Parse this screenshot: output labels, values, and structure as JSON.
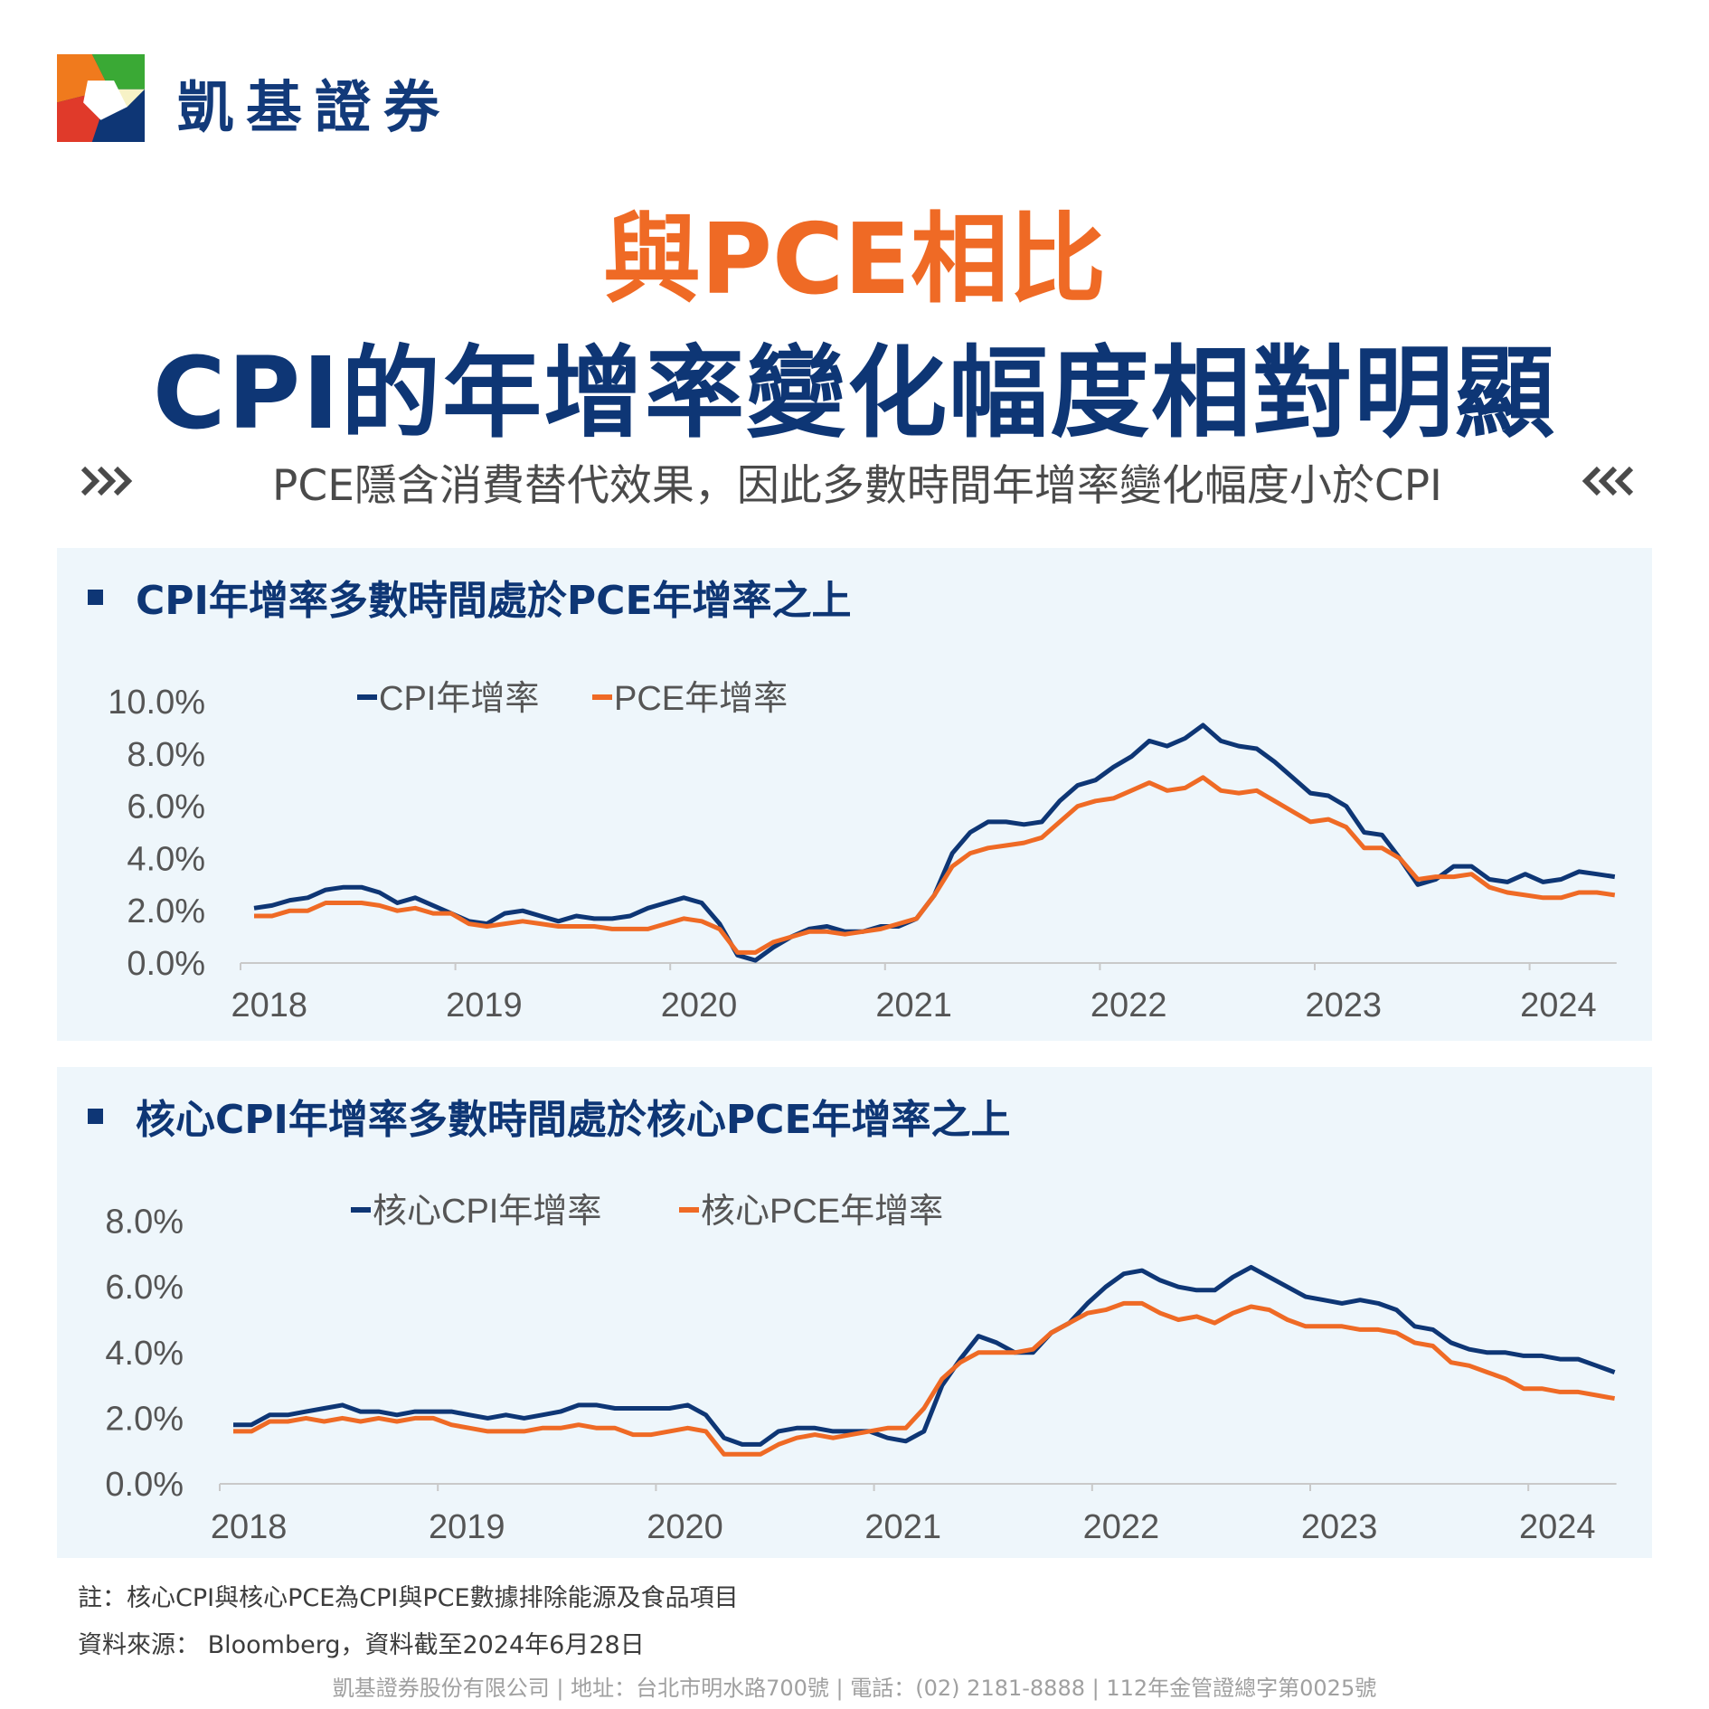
{
  "brand": {
    "name": "凱基證券"
  },
  "header": {
    "title_line1": "與PCE相比",
    "title_line2": "CPI的年增率變化幅度相對明顯",
    "subtitle": "PCE隱含消費替代效果，因此多數時間年增率變化幅度小於CPI"
  },
  "panels": [
    {
      "heading": "CPI年增率多數時間處於PCE年增率之上"
    },
    {
      "heading": "核心CPI年增率多數時間處於核心PCE年增率之上"
    }
  ],
  "colors": {
    "navy": "#0e3675",
    "orange": "#ef6a25",
    "panel_bg": "#eef6fb"
  },
  "chart_data": [
    {
      "type": "line",
      "title": "",
      "x_start": "2018-01",
      "frequency": "monthly",
      "x_ticks": [
        "2018",
        "2019",
        "2020",
        "2021",
        "2022",
        "2023",
        "2024"
      ],
      "y_ticks": [
        "0.0%",
        "2.0%",
        "4.0%",
        "6.0%",
        "8.0%",
        "10.0%"
      ],
      "ylim": [
        0,
        10
      ],
      "legend": "top-left",
      "grid": false,
      "series": [
        {
          "name": "CPI年增率",
          "color": "#0e3675",
          "values": [
            2.1,
            2.2,
            2.4,
            2.5,
            2.8,
            2.9,
            2.9,
            2.7,
            2.3,
            2.5,
            2.2,
            1.9,
            1.6,
            1.5,
            1.9,
            2.0,
            1.8,
            1.6,
            1.8,
            1.7,
            1.7,
            1.8,
            2.1,
            2.3,
            2.5,
            2.3,
            1.5,
            0.3,
            0.1,
            0.6,
            1.0,
            1.3,
            1.4,
            1.2,
            1.2,
            1.4,
            1.4,
            1.7,
            2.6,
            4.2,
            5.0,
            5.4,
            5.4,
            5.3,
            5.4,
            6.2,
            6.8,
            7.0,
            7.5,
            7.9,
            8.5,
            8.3,
            8.6,
            9.1,
            8.5,
            8.3,
            8.2,
            7.7,
            7.1,
            6.5,
            6.4,
            6.0,
            5.0,
            4.9,
            4.0,
            3.0,
            3.2,
            3.7,
            3.7,
            3.2,
            3.1,
            3.4,
            3.1,
            3.2,
            3.5,
            3.4,
            3.3
          ]
        },
        {
          "name": "PCE年增率",
          "color": "#ef6a25",
          "values": [
            1.8,
            1.8,
            2.0,
            2.0,
            2.3,
            2.3,
            2.3,
            2.2,
            2.0,
            2.1,
            1.9,
            1.9,
            1.5,
            1.4,
            1.5,
            1.6,
            1.5,
            1.4,
            1.4,
            1.4,
            1.3,
            1.3,
            1.3,
            1.5,
            1.7,
            1.6,
            1.3,
            0.4,
            0.4,
            0.8,
            1.0,
            1.2,
            1.2,
            1.1,
            1.2,
            1.3,
            1.5,
            1.7,
            2.6,
            3.7,
            4.2,
            4.4,
            4.5,
            4.6,
            4.8,
            5.4,
            6.0,
            6.2,
            6.3,
            6.6,
            6.9,
            6.6,
            6.7,
            7.1,
            6.6,
            6.5,
            6.6,
            6.2,
            5.8,
            5.4,
            5.5,
            5.2,
            4.4,
            4.4,
            4.0,
            3.2,
            3.3,
            3.3,
            3.4,
            2.9,
            2.7,
            2.6,
            2.5,
            2.5,
            2.7,
            2.7,
            2.6
          ]
        }
      ]
    },
    {
      "type": "line",
      "title": "",
      "x_start": "2018-01",
      "frequency": "monthly",
      "x_ticks": [
        "2018",
        "2019",
        "2020",
        "2021",
        "2022",
        "2023",
        "2024"
      ],
      "y_ticks": [
        "0.0%",
        "2.0%",
        "4.0%",
        "6.0%",
        "8.0%"
      ],
      "ylim": [
        0,
        8
      ],
      "legend": "top-left",
      "grid": false,
      "series": [
        {
          "name": "核心CPI年增率",
          "color": "#0e3675",
          "values": [
            1.8,
            1.8,
            2.1,
            2.1,
            2.2,
            2.3,
            2.4,
            2.2,
            2.2,
            2.1,
            2.2,
            2.2,
            2.2,
            2.1,
            2.0,
            2.1,
            2.0,
            2.1,
            2.2,
            2.4,
            2.4,
            2.3,
            2.3,
            2.3,
            2.3,
            2.4,
            2.1,
            1.4,
            1.2,
            1.2,
            1.6,
            1.7,
            1.7,
            1.6,
            1.6,
            1.6,
            1.4,
            1.3,
            1.6,
            3.0,
            3.8,
            4.5,
            4.3,
            4.0,
            4.0,
            4.6,
            4.9,
            5.5,
            6.0,
            6.4,
            6.5,
            6.2,
            6.0,
            5.9,
            5.9,
            6.3,
            6.6,
            6.3,
            6.0,
            5.7,
            5.6,
            5.5,
            5.6,
            5.5,
            5.3,
            4.8,
            4.7,
            4.3,
            4.1,
            4.0,
            4.0,
            3.9,
            3.9,
            3.8,
            3.8,
            3.6,
            3.4
          ]
        },
        {
          "name": "核心PCE年增率",
          "color": "#ef6a25",
          "values": [
            1.6,
            1.6,
            1.9,
            1.9,
            2.0,
            1.9,
            2.0,
            1.9,
            2.0,
            1.9,
            2.0,
            2.0,
            1.8,
            1.7,
            1.6,
            1.6,
            1.6,
            1.7,
            1.7,
            1.8,
            1.7,
            1.7,
            1.5,
            1.5,
            1.6,
            1.7,
            1.6,
            0.9,
            0.9,
            0.9,
            1.2,
            1.4,
            1.5,
            1.4,
            1.5,
            1.6,
            1.7,
            1.7,
            2.3,
            3.2,
            3.7,
            4.0,
            4.0,
            4.0,
            4.1,
            4.6,
            4.9,
            5.2,
            5.3,
            5.5,
            5.5,
            5.2,
            5.0,
            5.1,
            4.9,
            5.2,
            5.4,
            5.3,
            5.0,
            4.8,
            4.8,
            4.8,
            4.7,
            4.7,
            4.6,
            4.3,
            4.2,
            3.7,
            3.6,
            3.4,
            3.2,
            2.9,
            2.9,
            2.8,
            2.8,
            2.7,
            2.6
          ]
        }
      ]
    }
  ],
  "notes": {
    "note1": "註：核心CPI與核心PCE為CPI與PCE數據排除能源及食品項目",
    "note2": "資料來源： Bloomberg，資料截至2024年6月28日"
  },
  "footer": {
    "text": "凱基證券股份有限公司 | 地址：台北市明水路700號 | 電話：(02) 2181-8888 | 112年金管證總字第0025號"
  }
}
